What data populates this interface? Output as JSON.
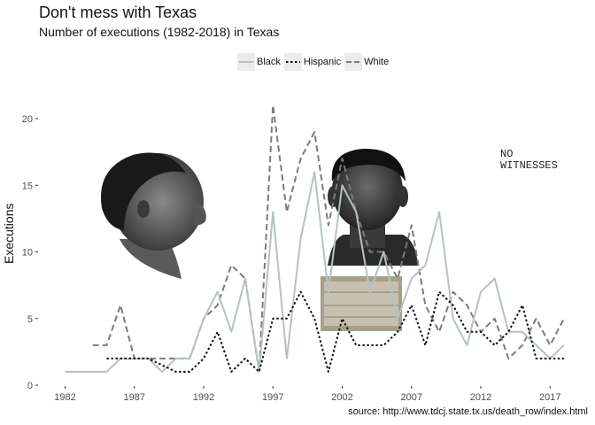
{
  "title": "Don't mess with Texas",
  "subtitle": "Number of executions (1982-2018) in Texas",
  "caption": "source: http://www.tdcj.state.tx.us/death_row/index.html",
  "stamp": [
    "NO",
    "WITNESSES"
  ],
  "chart_data": {
    "type": "line",
    "title": "Don't mess with Texas",
    "subtitle": "Number of executions (1982-2018) in Texas",
    "xlabel": "",
    "ylabel": "Executions",
    "xlim": [
      1981,
      2019
    ],
    "ylim": [
      0,
      22
    ],
    "xticks": [
      1982,
      1987,
      1992,
      1997,
      2002,
      2007,
      2012,
      2017
    ],
    "yticks": [
      0,
      5,
      10,
      15,
      20
    ],
    "legend_position": "top",
    "grid": false,
    "series": [
      {
        "name": "Black",
        "color": "#b4c3c0",
        "dash": "solid",
        "x": [
          1982,
          1983,
          1984,
          1985,
          1986,
          1987,
          1988,
          1989,
          1990,
          1991,
          1992,
          1993,
          1994,
          1995,
          1996,
          1997,
          1998,
          1999,
          2000,
          2001,
          2002,
          2003,
          2004,
          2005,
          2006,
          2007,
          2008,
          2009,
          2010,
          2011,
          2012,
          2013,
          2014,
          2015,
          2016,
          2017,
          2018
        ],
        "values": [
          1,
          1,
          1,
          1,
          2,
          2,
          2,
          1,
          2,
          2,
          5,
          7,
          4,
          8,
          1,
          13,
          2,
          11,
          16,
          7,
          15,
          13,
          7,
          10,
          5,
          8,
          9,
          13,
          5,
          3,
          7,
          8,
          4,
          4,
          3,
          2,
          3
        ]
      },
      {
        "name": "Hispanic",
        "color": "#111111",
        "dash": "dotted",
        "x": [
          1985,
          1986,
          1987,
          1988,
          1989,
          1990,
          1991,
          1992,
          1993,
          1994,
          1995,
          1996,
          1997,
          1998,
          1999,
          2000,
          2001,
          2002,
          2003,
          2004,
          2005,
          2006,
          2007,
          2008,
          2009,
          2010,
          2011,
          2012,
          2013,
          2014,
          2015,
          2016,
          2017,
          2018
        ],
        "values": [
          2,
          2,
          2,
          2,
          1.5,
          1,
          1,
          2,
          4,
          1,
          2,
          1,
          5,
          5,
          7,
          5,
          1,
          5,
          3,
          3,
          3,
          4,
          6,
          3,
          7,
          6,
          4,
          4,
          3,
          4,
          6,
          2,
          2,
          2
        ]
      },
      {
        "name": "White",
        "color": "#7f7a78",
        "dash": "dashed",
        "x": [
          1984,
          1985,
          1986,
          1987,
          1988,
          1989,
          1990,
          1991,
          1992,
          1993,
          1994,
          1995,
          1996,
          1997,
          1998,
          1999,
          2000,
          2001,
          2002,
          2003,
          2004,
          2005,
          2006,
          2007,
          2008,
          2009,
          2010,
          2011,
          2012,
          2013,
          2014,
          2015,
          2016,
          2017,
          2018
        ],
        "values": [
          3,
          3,
          6,
          2,
          2,
          2,
          2,
          2,
          5,
          6,
          9,
          8,
          1,
          21,
          13,
          17,
          19,
          12,
          17,
          13,
          10,
          10,
          8,
          12,
          6,
          4,
          7,
          6,
          4,
          5,
          2,
          3,
          5,
          3,
          5
        ]
      }
    ]
  }
}
